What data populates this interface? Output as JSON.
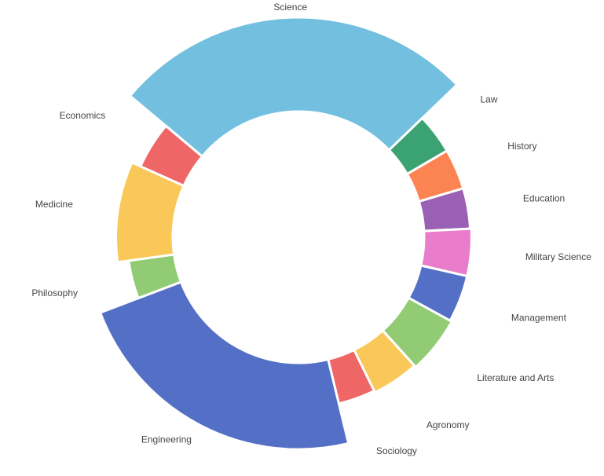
{
  "chart_data": {
    "type": "pie",
    "variant": "donut",
    "title": "",
    "start_category": "Science",
    "direction": "clockwise",
    "categories": [
      "Science",
      "Law",
      "History",
      "Education",
      "Military Science",
      "Management",
      "Literature and Arts",
      "Agronomy",
      "Sociology",
      "Engineering",
      "Philosophy",
      "Medicine",
      "Economics"
    ],
    "values": [
      26.7,
      3.8,
      3.8,
      3.8,
      4.4,
      4.4,
      5.3,
      4.4,
      3.5,
      23.0,
      3.6,
      8.9,
      4.4
    ],
    "colors": [
      "#73bfdf",
      "#3ba272",
      "#fc8452",
      "#9a60b4",
      "#ea7ccc",
      "#5470c6",
      "#91cc75",
      "#fac858",
      "#ee6666",
      "#5470c6",
      "#91cc75",
      "#fac858",
      "#ee6666"
    ],
    "legend": "none",
    "grid": false
  }
}
